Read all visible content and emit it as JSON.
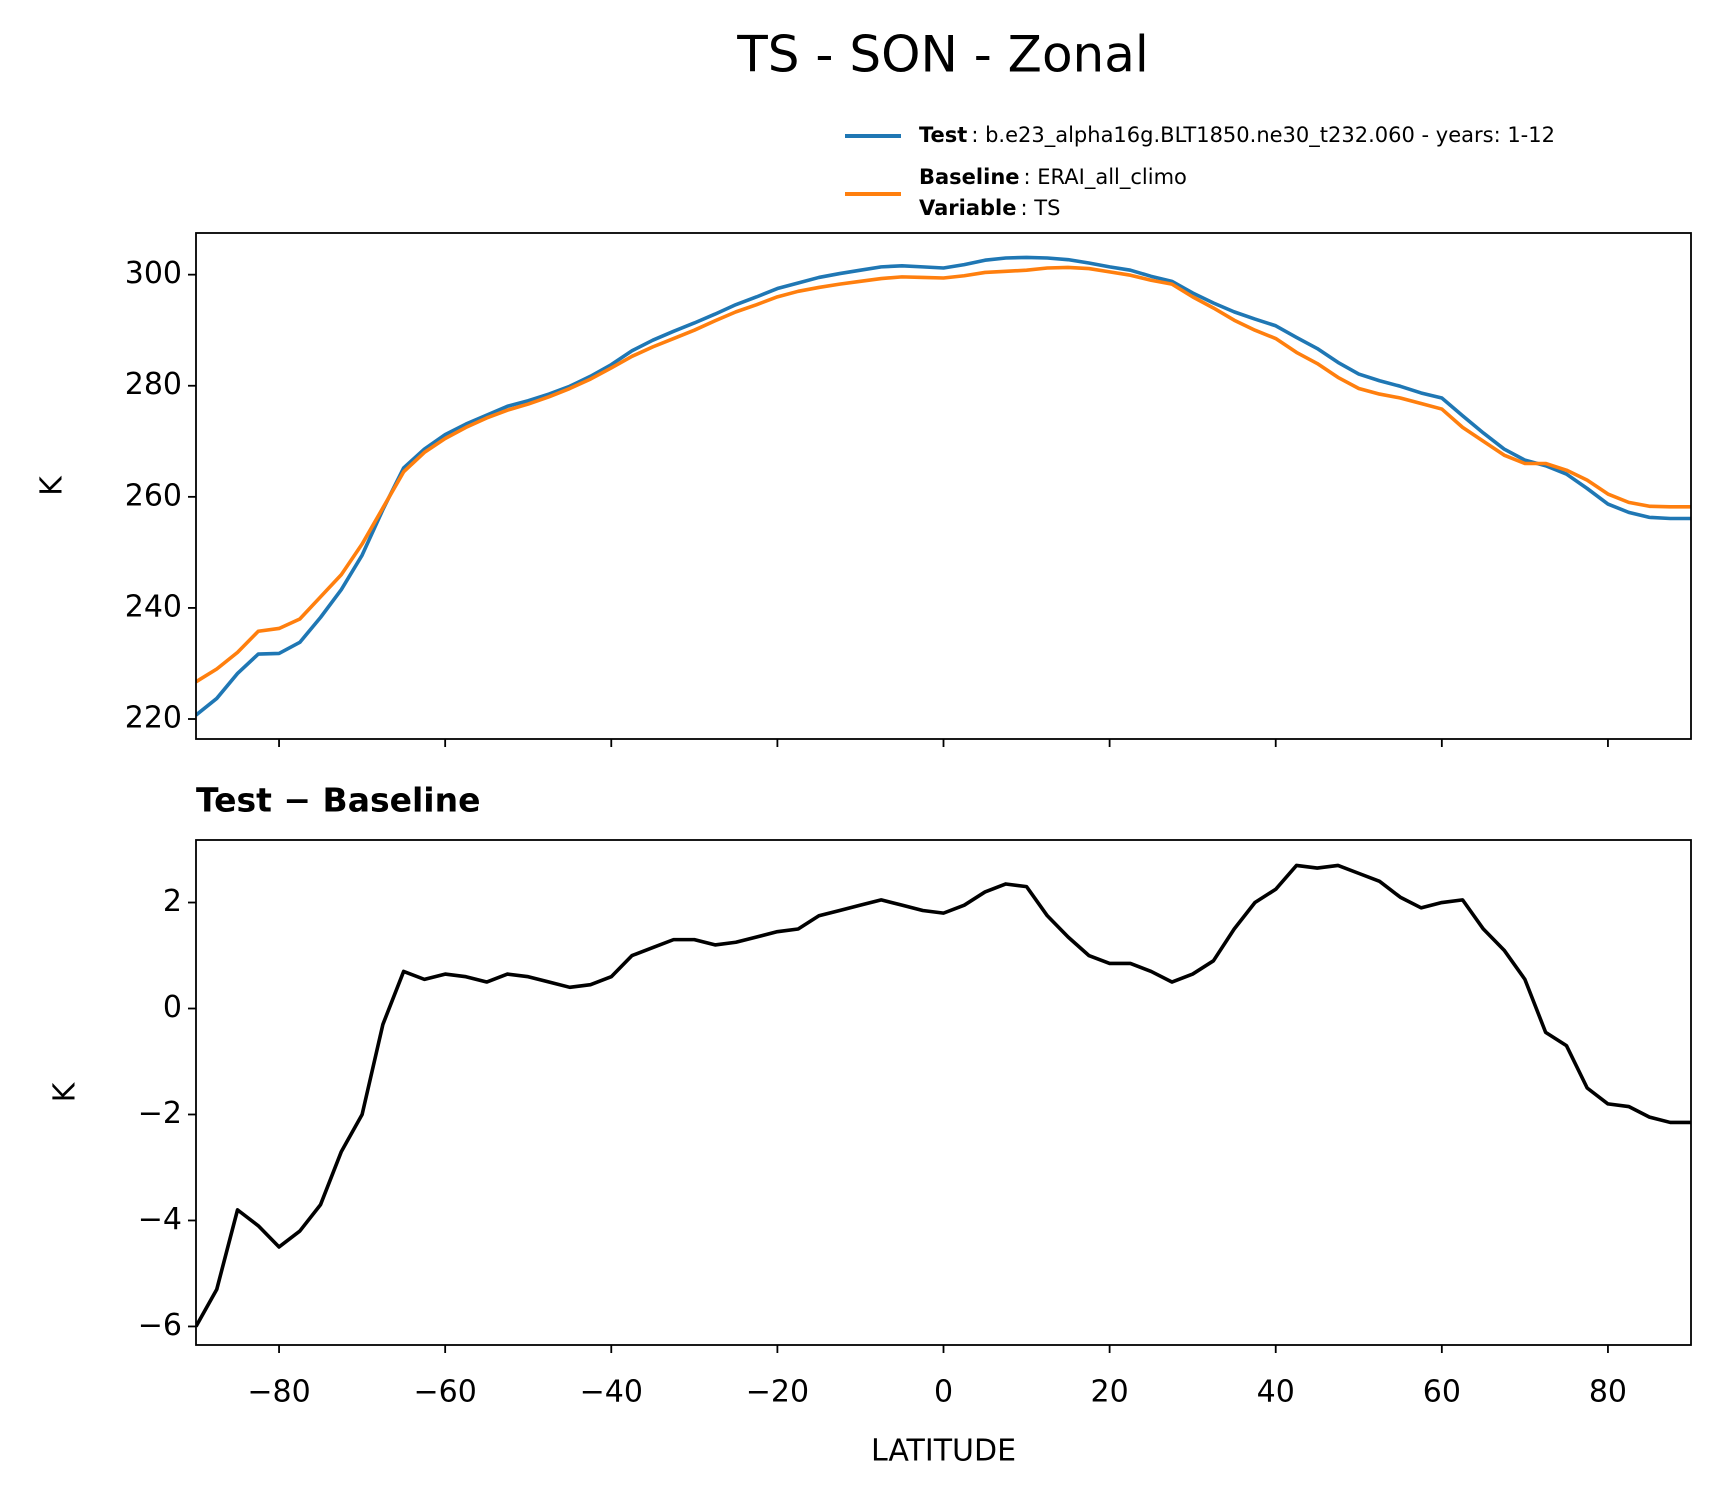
{
  "chart_data": [
    {
      "type": "line",
      "title": "TS - SON - Zonal",
      "ylabel": "K",
      "x": [
        -90,
        -87.5,
        -85,
        -82.5,
        -80,
        -77.5,
        -75,
        -72.5,
        -70,
        -67.5,
        -65,
        -62.5,
        -60,
        -57.5,
        -55,
        -52.5,
        -50,
        -47.5,
        -45,
        -42.5,
        -40,
        -37.5,
        -35,
        -32.5,
        -30,
        -27.5,
        -25,
        -22.5,
        -20,
        -17.5,
        -15,
        -12.5,
        -10,
        -7.5,
        -5,
        -2.5,
        0,
        2.5,
        5,
        7.5,
        10,
        12.5,
        15,
        17.5,
        20,
        22.5,
        25,
        27.5,
        30,
        32.5,
        35,
        37.5,
        40,
        42.5,
        45,
        47.5,
        50,
        52.5,
        55,
        57.5,
        60,
        62.5,
        65,
        67.5,
        70,
        72.5,
        75,
        77.5,
        80,
        82.5,
        85,
        87.5,
        90
      ],
      "series": [
        {
          "name": "Test",
          "text": ": b.e23_alpha16g.BLT1850.ne30_t232.060 - years: 1-12",
          "color": "#1f77b4",
          "values": [
            220.7,
            223.7,
            228.2,
            231.7,
            231.8,
            233.8,
            238.3,
            243.3,
            249.5,
            257.7,
            265.2,
            268.6,
            271.2,
            273.1,
            274.7,
            276.3,
            277.3,
            278.5,
            279.9,
            281.7,
            283.8,
            286.3,
            288.2,
            289.8,
            291.3,
            292.9,
            294.6,
            296.0,
            297.5,
            298.5,
            299.5,
            300.2,
            300.8,
            301.4,
            301.6,
            301.4,
            301.2,
            301.8,
            302.6,
            303.0,
            303.1,
            303.0,
            302.7,
            302.1,
            301.4,
            300.8,
            299.7,
            298.8,
            296.7,
            294.9,
            293.3,
            292.0,
            290.8,
            288.7,
            286.7,
            284.2,
            282.1,
            280.9,
            279.9,
            278.7,
            277.8,
            274.6,
            271.5,
            268.6,
            266.6,
            265.6,
            264.1,
            261.5,
            258.7,
            257.2,
            256.3,
            256.1,
            256.1
          ]
        },
        {
          "name": "Baseline",
          "text": ": ERAI_all_climo",
          "color": "#ff7f0e",
          "values": [
            226.7,
            229,
            232,
            235.8,
            236.3,
            238,
            242,
            246,
            251.5,
            258,
            264.5,
            268,
            270.5,
            272.5,
            274.2,
            275.6,
            276.7,
            278,
            279.5,
            281.2,
            283.2,
            285.3,
            287,
            288.5,
            290,
            291.7,
            293.3,
            294.6,
            296,
            297,
            297.7,
            298.3,
            298.8,
            299.3,
            299.6,
            299.5,
            299.4,
            299.8,
            300.4,
            300.6,
            300.8,
            301.2,
            301.3,
            301.1,
            300.5,
            299.9,
            299,
            298.3,
            296,
            294,
            291.8,
            290,
            288.5,
            286,
            284,
            281.5,
            279.5,
            278.5,
            277.8,
            276.8,
            275.8,
            272.5,
            270,
            267.5,
            266,
            266,
            264.8,
            263,
            260.5,
            259,
            258.3,
            258.2,
            258.2
          ]
        }
      ],
      "legend_extra": {
        "name": "Variable",
        "text": ": TS"
      },
      "legend": "upper right",
      "xlim": [
        -90,
        90
      ],
      "xticks": [
        -80,
        -60,
        -40,
        -20,
        0,
        20,
        40,
        60,
        80
      ],
      "xticklabels": false,
      "ylim": [
        216.4,
        307.5
      ],
      "yticks": [
        220,
        240,
        260,
        280,
        300
      ]
    },
    {
      "type": "line",
      "title": "Test − Baseline",
      "ylabel": "K",
      "xlabel": "LATITUDE",
      "x": [
        -90,
        -87.5,
        -85,
        -82.5,
        -80,
        -77.5,
        -75,
        -72.5,
        -70,
        -67.5,
        -65,
        -62.5,
        -60,
        -57.5,
        -55,
        -52.5,
        -50,
        -47.5,
        -45,
        -42.5,
        -40,
        -37.5,
        -35,
        -32.5,
        -30,
        -27.5,
        -25,
        -22.5,
        -20,
        -17.5,
        -15,
        -12.5,
        -10,
        -7.5,
        -5,
        -2.5,
        0,
        2.5,
        5,
        7.5,
        10,
        12.5,
        15,
        17.5,
        20,
        22.5,
        25,
        27.5,
        30,
        32.5,
        35,
        37.5,
        40,
        42.5,
        45,
        47.5,
        50,
        52.5,
        55,
        57.5,
        60,
        62.5,
        65,
        67.5,
        70,
        72.5,
        75,
        77.5,
        80,
        82.5,
        85,
        87.5,
        90
      ],
      "series": [
        {
          "color": "#000000",
          "values": [
            -6.0,
            -5.3,
            -3.8,
            -4.1,
            -4.5,
            -4.2,
            -3.7,
            -2.7,
            -2.0,
            -0.3,
            0.7,
            0.55,
            0.65,
            0.6,
            0.5,
            0.65,
            0.6,
            0.5,
            0.4,
            0.45,
            0.6,
            1.0,
            1.15,
            1.3,
            1.3,
            1.2,
            1.25,
            1.35,
            1.45,
            1.5,
            1.75,
            1.85,
            1.95,
            2.05,
            1.95,
            1.85,
            1.8,
            1.95,
            2.2,
            2.35,
            2.3,
            1.75,
            1.35,
            1.0,
            0.85,
            0.85,
            0.7,
            0.5,
            0.65,
            0.9,
            1.5,
            2.0,
            2.25,
            2.7,
            2.65,
            2.7,
            2.55,
            2.4,
            2.1,
            1.9,
            2.0,
            2.05,
            1.5,
            1.1,
            0.55,
            -0.45,
            -0.7,
            -1.5,
            -1.8,
            -1.85,
            -2.05,
            -2.15,
            -2.15
          ]
        }
      ],
      "xlim": [
        -90,
        90
      ],
      "xticks": [
        {
          "value": -80,
          "label": "−80"
        },
        {
          "value": -60,
          "label": "−60"
        },
        {
          "value": -40,
          "label": "−40"
        },
        {
          "value": -20,
          "label": "−20"
        },
        0,
        20,
        40,
        60,
        80
      ],
      "ylim": [
        -6.35,
        3.18
      ],
      "yticks": [
        {
          "value": -6,
          "label": "−6"
        },
        {
          "value": -4,
          "label": "−4"
        },
        {
          "value": -2,
          "label": "−2"
        },
        0,
        2
      ]
    }
  ]
}
